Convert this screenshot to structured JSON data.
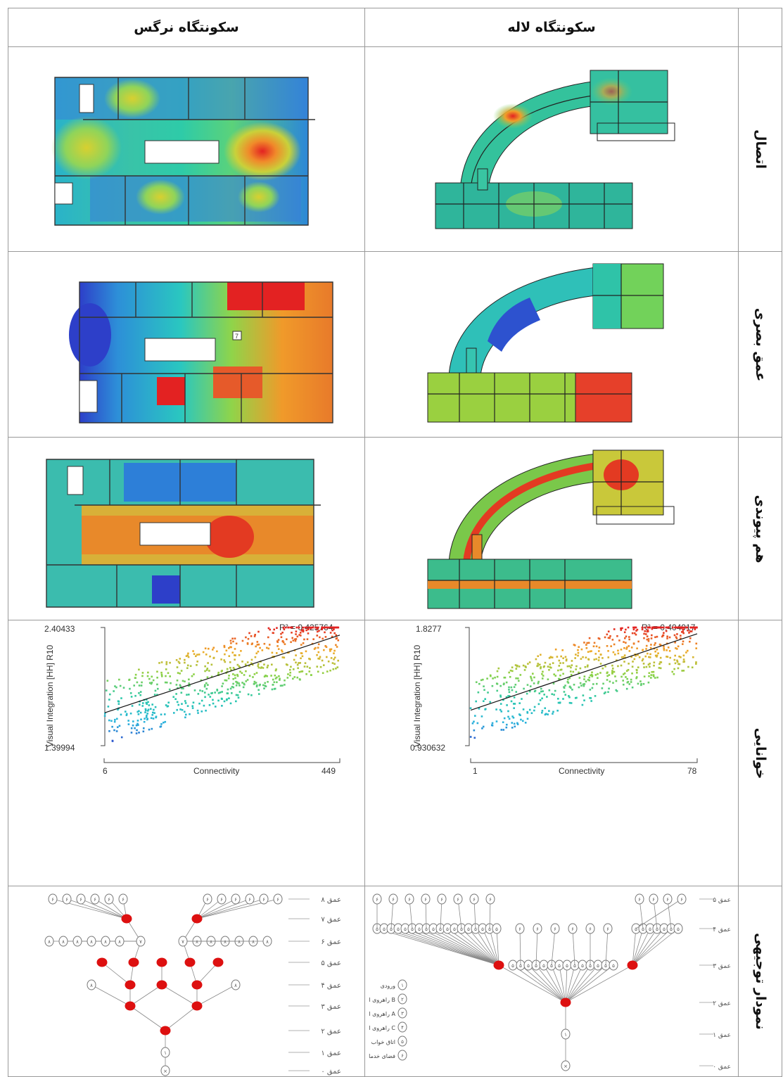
{
  "header": {
    "col_right": "سکونتگاه لاله",
    "col_left": "سکونتگاه نرگس"
  },
  "rows": {
    "connectivity": "اتصال",
    "visual_depth": "عمق بصری",
    "integration": "هم پیوندی",
    "intelligibility": "خوانایی",
    "justified_graph": "نمودار توجیهی"
  },
  "floor_numbers": {
    "narges_depth_marker": "7"
  },
  "chart_data": [
    {
      "type": "scatter",
      "panel": "narges",
      "xlabel": "Connectivity",
      "ylabel": "Visual Integration [HH] R10",
      "xlim": [
        6,
        449
      ],
      "ylim": [
        1.39994,
        2.40433
      ],
      "x_ticks": [
        "6",
        "449"
      ],
      "y_ticks": [
        "2.40433",
        "1.39994"
      ],
      "r2_label": "R² = 0.425764",
      "regression": {
        "x": [
          6,
          449
        ],
        "y": [
          1.68,
          2.34
        ]
      }
    },
    {
      "type": "scatter",
      "panel": "laleh",
      "xlabel": "Connectivity",
      "ylabel": "Visual Integration [HH] R10",
      "xlim": [
        1,
        78
      ],
      "ylim": [
        0.930632,
        1.8277
      ],
      "x_ticks": [
        "1",
        "78"
      ],
      "y_ticks": [
        "1.8277",
        "0.930632"
      ],
      "r2_label": "R² = 0.404917",
      "regression": {
        "x": [
          1,
          78
        ],
        "y": [
          1.2,
          1.78
        ]
      }
    }
  ],
  "jgraph": {
    "narges_levels": [
      "عمق ۸",
      "عمق ۷",
      "عمق ۶",
      "عمق ۵",
      "عمق ۴",
      "عمق ۳",
      "عمق ۲",
      "عمق ۱",
      "عمق ۰"
    ],
    "laleh_levels": [
      "عمق ۵",
      "عمق ۴",
      "عمق ۳",
      "عمق ۲",
      "عمق ۱",
      "عمق ۰"
    ],
    "legend": [
      {
        "n": "۱",
        "label": "ورودی"
      },
      {
        "n": "۲",
        "label": "راهروی اصلی B"
      },
      {
        "n": "۳",
        "label": "راهروی اصلی A"
      },
      {
        "n": "۴",
        "label": "راهروی اصلی C"
      },
      {
        "n": "۵",
        "label": "اتاق خواب"
      },
      {
        "n": "۶",
        "label": "فضای خدماتی"
      }
    ]
  },
  "colors": {
    "heat_low": "#2d3fc9",
    "heat_mid": "#2ad0b0",
    "heat_high": "#e32222",
    "node_red": "#dd1010"
  }
}
